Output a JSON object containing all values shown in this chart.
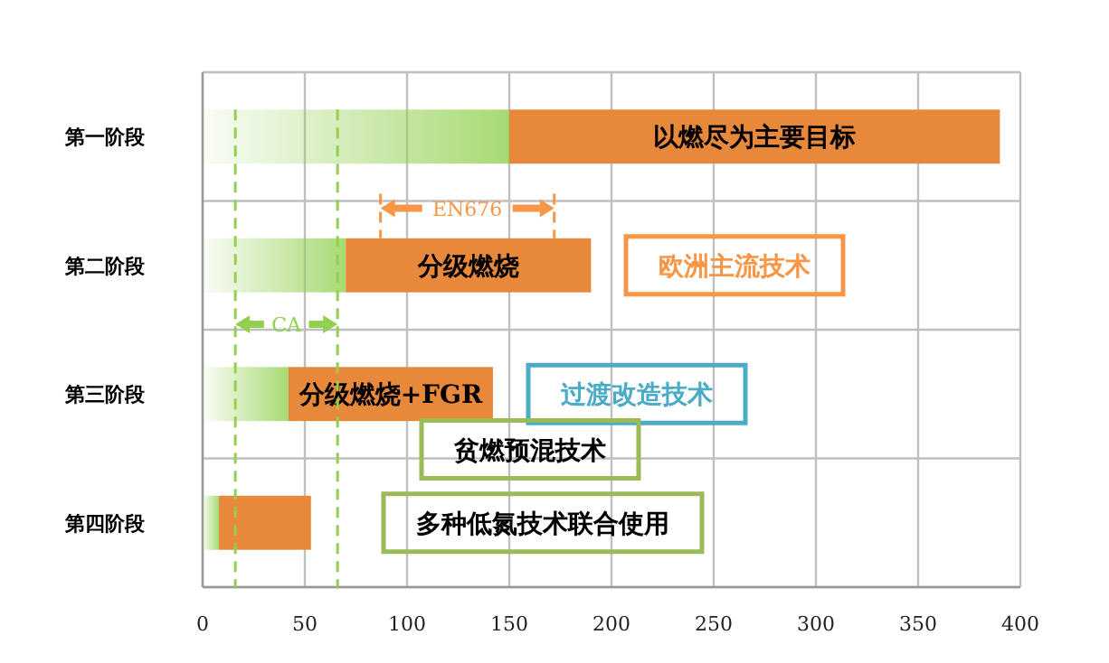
{
  "chart_data": {
    "type": "bar",
    "orientation": "horizontal",
    "stacked": true,
    "categories": [
      "第一阶段",
      "第二阶段",
      "第三阶段",
      "第四阶段"
    ],
    "series": [
      {
        "color": "#92d050",
        "values": [
          150,
          70,
          42,
          8
        ]
      },
      {
        "color": "#e8883a",
        "values": [
          240,
          120,
          100,
          45
        ],
        "value_labels": [
          "以燃尽为主要目标",
          "分级燃烧",
          "分级燃烧+FGR",
          null
        ]
      }
    ],
    "xlim": [
      0,
      400
    ],
    "xticks": [
      0,
      50,
      100,
      150,
      200,
      250,
      300,
      350,
      400
    ],
    "grid": true,
    "ref_lines": [
      {
        "axis": "x",
        "value": 16,
        "label": "CA",
        "color": "#92d050",
        "line_style": "dashed"
      },
      {
        "axis": "x",
        "value": 66,
        "label": null,
        "color": "#92d050",
        "line_style": "dashed"
      },
      {
        "axis": "x",
        "value": 87,
        "label": "EN676",
        "color": "#f79646",
        "line_style": "dashed"
      },
      {
        "axis": "x",
        "value": 172,
        "label": null,
        "color": "#f79646",
        "line_style": "dashed"
      }
    ],
    "annotations": [
      "欧洲主流技术",
      "过渡改造技术",
      "贫燃预混技术",
      "多种低氮技术联合使用"
    ]
  }
}
